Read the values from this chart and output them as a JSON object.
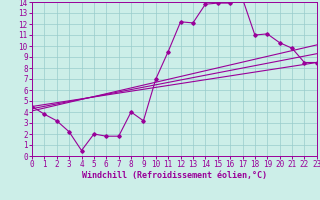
{
  "xlabel": "Windchill (Refroidissement éolien,°C)",
  "bg_color": "#cceee8",
  "line_color": "#990099",
  "grid_color": "#99cccc",
  "xlim": [
    0,
    23
  ],
  "ylim": [
    0,
    14
  ],
  "xticks": [
    0,
    1,
    2,
    3,
    4,
    5,
    6,
    7,
    8,
    9,
    10,
    11,
    12,
    13,
    14,
    15,
    16,
    17,
    18,
    19,
    20,
    21,
    22,
    23
  ],
  "yticks": [
    0,
    1,
    2,
    3,
    4,
    5,
    6,
    7,
    8,
    9,
    10,
    11,
    12,
    13,
    14
  ],
  "wavy_x": [
    0,
    1,
    2,
    3,
    4,
    5,
    6,
    7,
    8,
    9,
    10,
    11,
    12,
    13,
    14,
    15,
    16,
    17,
    18,
    19,
    20,
    21,
    22,
    23
  ],
  "wavy_y": [
    4.5,
    3.8,
    3.2,
    2.2,
    0.5,
    2.0,
    1.8,
    1.8,
    4.0,
    3.2,
    7.0,
    9.5,
    12.2,
    12.1,
    13.8,
    13.9,
    13.9,
    14.3,
    11.0,
    11.1,
    10.3,
    9.8,
    8.5,
    8.5
  ],
  "line1_x": [
    0,
    23
  ],
  "line1_y": [
    4.5,
    8.5
  ],
  "line2_x": [
    0,
    23
  ],
  "line2_y": [
    4.3,
    9.3
  ],
  "line3_x": [
    0,
    23
  ],
  "line3_y": [
    4.1,
    10.1
  ],
  "xlabel_fontsize": 6,
  "tick_fontsize": 5.5
}
